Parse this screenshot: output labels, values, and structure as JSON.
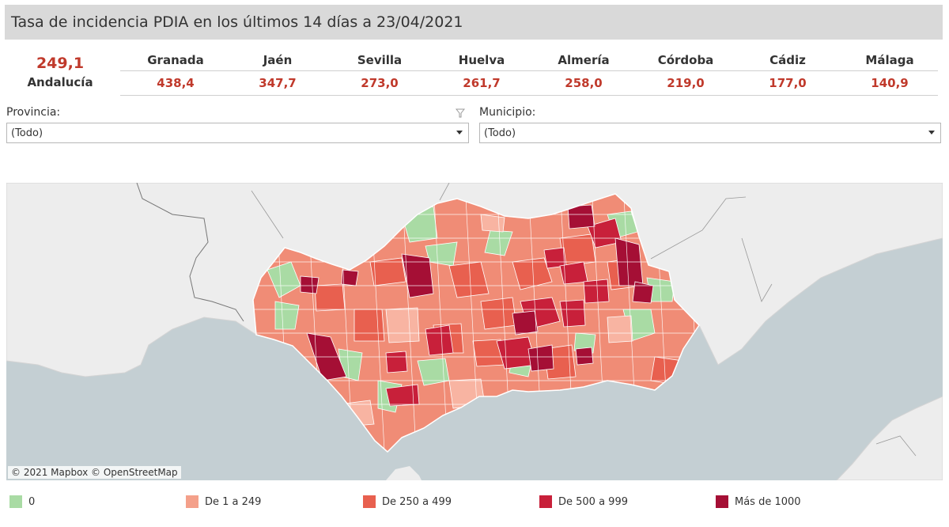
{
  "title": "Tasa de incidencia PDIA en los últimos 14 días a 23/04/2021",
  "summary": {
    "total_value": "249,1",
    "total_label": "Andalucía"
  },
  "provinces": [
    {
      "name": "Granada",
      "value": "438,4"
    },
    {
      "name": "Jaén",
      "value": "347,7"
    },
    {
      "name": "Sevilla",
      "value": "273,0"
    },
    {
      "name": "Huelva",
      "value": "261,7"
    },
    {
      "name": "Almería",
      "value": "258,0"
    },
    {
      "name": "Córdoba",
      "value": "219,0"
    },
    {
      "name": "Cádiz",
      "value": "177,0"
    },
    {
      "name": "Málaga",
      "value": "140,9"
    }
  ],
  "filters": {
    "provincia": {
      "label": "Provincia:",
      "value": "(Todo)"
    },
    "municipio": {
      "label": "Municipio:",
      "value": "(Todo)"
    }
  },
  "map": {
    "attribution": "© 2021 Mapbox © OpenStreetMap"
  },
  "legend": [
    {
      "label": "0",
      "color": "#a9dba4"
    },
    {
      "label": "De 1 a 249",
      "color": "#f4a08a"
    },
    {
      "label": "De 250 a 499",
      "color": "#e8604f"
    },
    {
      "label": "De 500 a 999",
      "color": "#c8203a"
    },
    {
      "label": "Más de 1000",
      "color": "#a50f35"
    }
  ]
}
